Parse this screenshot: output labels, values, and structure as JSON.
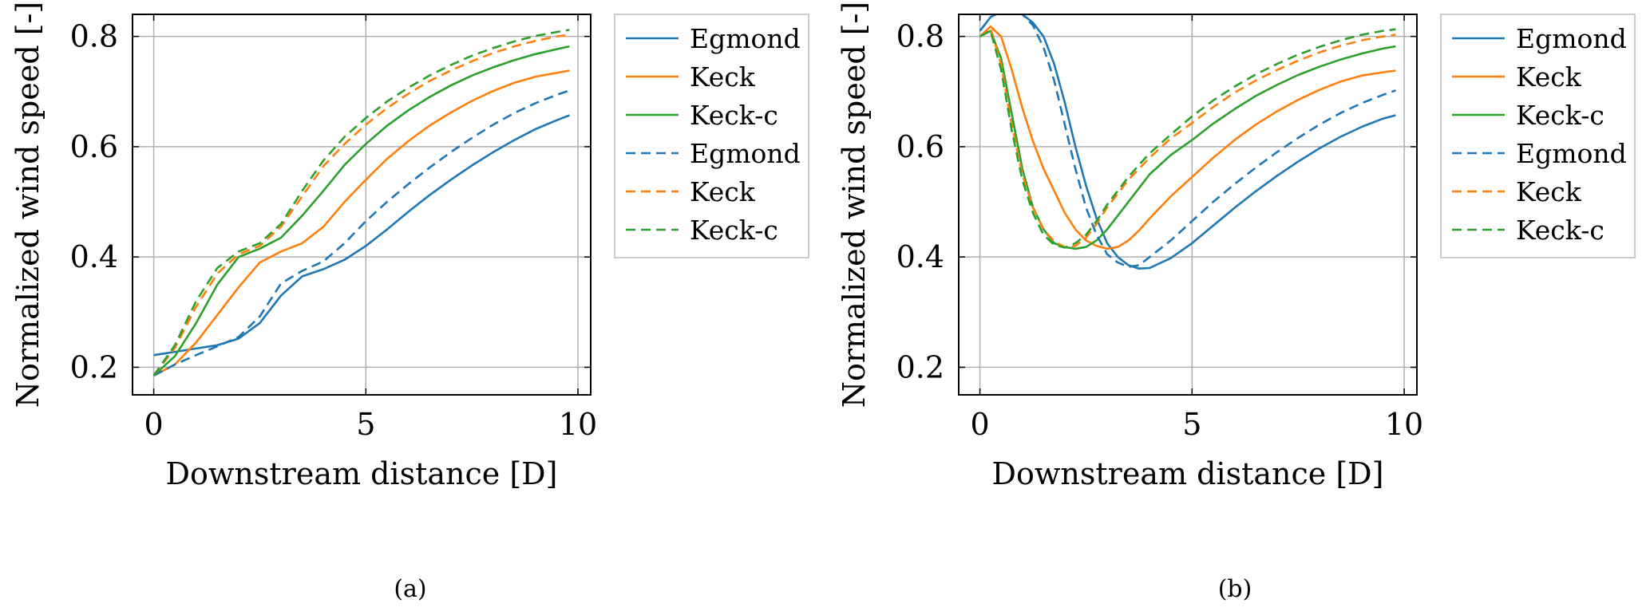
{
  "colors": {
    "blue": "#1f77b4",
    "orange": "#ff7f0e",
    "green": "#2ca02c",
    "grid": "#b0b0b0",
    "legend_border": "#cccccc"
  },
  "chart_data": [
    {
      "type": "line",
      "caption": "(a)",
      "xlabel": "Downstream distance [D]",
      "ylabel": "Normalized wind speed [-]",
      "xlim": [
        -0.5,
        10.3
      ],
      "ylim": [
        0.15,
        0.84
      ],
      "xticks": [
        0,
        5,
        10
      ],
      "xtick_labels": [
        "0",
        "5",
        "10"
      ],
      "yticks": [
        0.2,
        0.4,
        0.6,
        0.8
      ],
      "ytick_labels": [
        "0.2",
        "0.4",
        "0.6",
        "0.8"
      ],
      "grid": true,
      "legend_position": "outside-right",
      "series": [
        {
          "name": "Egmond",
          "style": "solid",
          "color": "blue",
          "x": [
            0,
            0.5,
            1,
            1.5,
            2,
            2.5,
            3,
            3.5,
            4,
            4.5,
            5,
            5.5,
            6,
            6.5,
            7,
            7.5,
            8,
            8.5,
            9,
            9.5,
            9.8
          ],
          "y": [
            0.222,
            0.228,
            0.234,
            0.24,
            0.252,
            0.28,
            0.33,
            0.365,
            0.378,
            0.395,
            0.42,
            0.45,
            0.482,
            0.512,
            0.54,
            0.566,
            0.59,
            0.612,
            0.632,
            0.648,
            0.657
          ]
        },
        {
          "name": "Keck",
          "style": "solid",
          "color": "orange",
          "x": [
            0,
            0.5,
            1,
            1.5,
            2,
            2.5,
            3,
            3.5,
            4,
            4.5,
            5,
            5.5,
            6,
            6.5,
            7,
            7.5,
            8,
            8.5,
            9,
            9.5,
            9.8
          ],
          "y": [
            0.185,
            0.205,
            0.245,
            0.295,
            0.345,
            0.39,
            0.41,
            0.425,
            0.455,
            0.5,
            0.54,
            0.578,
            0.61,
            0.638,
            0.662,
            0.683,
            0.701,
            0.716,
            0.727,
            0.734,
            0.738
          ]
        },
        {
          "name": "Keck-c",
          "style": "solid",
          "color": "green",
          "x": [
            0,
            0.5,
            1,
            1.5,
            2,
            2.5,
            3,
            3.5,
            4,
            4.5,
            5,
            5.5,
            6,
            6.5,
            7,
            7.5,
            8,
            8.5,
            9,
            9.5,
            9.8
          ],
          "y": [
            0.185,
            0.22,
            0.28,
            0.35,
            0.4,
            0.415,
            0.435,
            0.475,
            0.52,
            0.567,
            0.605,
            0.638,
            0.666,
            0.69,
            0.711,
            0.729,
            0.744,
            0.757,
            0.768,
            0.777,
            0.782
          ]
        },
        {
          "name": "Egmond",
          "style": "dashed",
          "color": "blue",
          "x": [
            0,
            0.5,
            1,
            1.5,
            2,
            2.5,
            3,
            3.5,
            4,
            4.5,
            5,
            5.5,
            6,
            6.5,
            7,
            7.5,
            8,
            8.5,
            9,
            9.5,
            9.8
          ],
          "y": [
            0.185,
            0.205,
            0.222,
            0.238,
            0.255,
            0.292,
            0.352,
            0.375,
            0.392,
            0.425,
            0.465,
            0.5,
            0.532,
            0.562,
            0.59,
            0.616,
            0.64,
            0.661,
            0.679,
            0.694,
            0.702
          ]
        },
        {
          "name": "Keck",
          "style": "dashed",
          "color": "orange",
          "x": [
            0,
            0.5,
            1,
            1.5,
            2,
            2.5,
            3,
            3.5,
            4,
            4.5,
            5,
            5.5,
            6,
            6.5,
            7,
            7.5,
            8,
            8.5,
            9,
            9.5,
            9.8
          ],
          "y": [
            0.185,
            0.235,
            0.31,
            0.37,
            0.405,
            0.42,
            0.455,
            0.51,
            0.565,
            0.605,
            0.64,
            0.67,
            0.696,
            0.719,
            0.738,
            0.755,
            0.77,
            0.782,
            0.792,
            0.8,
            0.803
          ]
        },
        {
          "name": "Keck-c",
          "style": "dashed",
          "color": "green",
          "x": [
            0,
            0.5,
            1,
            1.5,
            2,
            2.5,
            3,
            3.5,
            4,
            4.5,
            5,
            5.5,
            6,
            6.5,
            7,
            7.5,
            8,
            8.5,
            9,
            9.5,
            9.8
          ],
          "y": [
            0.185,
            0.24,
            0.32,
            0.38,
            0.41,
            0.425,
            0.46,
            0.52,
            0.575,
            0.618,
            0.652,
            0.682,
            0.707,
            0.729,
            0.748,
            0.765,
            0.779,
            0.791,
            0.801,
            0.808,
            0.812
          ]
        }
      ]
    },
    {
      "type": "line",
      "caption": "(b)",
      "xlabel": "Downstream distance [D]",
      "ylabel": "Normalized wind speed [-]",
      "xlim": [
        -0.5,
        10.3
      ],
      "ylim": [
        0.15,
        0.84
      ],
      "xticks": [
        0,
        5,
        10
      ],
      "xtick_labels": [
        "0",
        "5",
        "10"
      ],
      "yticks": [
        0.2,
        0.4,
        0.6,
        0.8
      ],
      "ytick_labels": [
        "0.2",
        "0.4",
        "0.6",
        "0.8"
      ],
      "grid": true,
      "legend_position": "outside-right",
      "series": [
        {
          "name": "Egmond",
          "style": "solid",
          "color": "blue",
          "x": [
            0,
            0.25,
            0.5,
            0.75,
            1,
            1.25,
            1.5,
            1.75,
            2,
            2.25,
            2.5,
            2.75,
            3,
            3.25,
            3.5,
            3.75,
            4,
            4.5,
            5,
            5.5,
            6,
            6.5,
            7,
            7.5,
            8,
            8.5,
            9,
            9.5,
            9.8
          ],
          "y": [
            0.81,
            0.835,
            0.845,
            0.845,
            0.84,
            0.825,
            0.8,
            0.75,
            0.68,
            0.6,
            0.53,
            0.47,
            0.425,
            0.4,
            0.385,
            0.379,
            0.38,
            0.398,
            0.425,
            0.457,
            0.489,
            0.519,
            0.547,
            0.573,
            0.597,
            0.618,
            0.636,
            0.651,
            0.657
          ]
        },
        {
          "name": "Keck",
          "style": "solid",
          "color": "orange",
          "x": [
            0,
            0.25,
            0.5,
            0.75,
            1,
            1.25,
            1.5,
            1.75,
            2,
            2.25,
            2.5,
            2.75,
            3,
            3.25,
            3.5,
            3.75,
            4,
            4.5,
            5,
            5.5,
            6,
            6.5,
            7,
            7.5,
            8,
            8.5,
            9,
            9.5,
            9.8
          ],
          "y": [
            0.8,
            0.818,
            0.8,
            0.74,
            0.67,
            0.61,
            0.56,
            0.52,
            0.48,
            0.45,
            0.43,
            0.42,
            0.415,
            0.418,
            0.43,
            0.448,
            0.47,
            0.51,
            0.545,
            0.58,
            0.612,
            0.64,
            0.664,
            0.685,
            0.703,
            0.718,
            0.729,
            0.735,
            0.738
          ]
        },
        {
          "name": "Keck-c",
          "style": "solid",
          "color": "green",
          "x": [
            0,
            0.25,
            0.5,
            0.75,
            1,
            1.25,
            1.5,
            1.75,
            2,
            2.25,
            2.5,
            2.75,
            3,
            3.25,
            3.5,
            3.75,
            4,
            4.5,
            5,
            5.5,
            6,
            6.5,
            7,
            7.5,
            8,
            8.5,
            9,
            9.5,
            9.8
          ],
          "y": [
            0.8,
            0.81,
            0.76,
            0.66,
            0.56,
            0.49,
            0.45,
            0.425,
            0.418,
            0.415,
            0.418,
            0.43,
            0.45,
            0.475,
            0.5,
            0.525,
            0.55,
            0.585,
            0.612,
            0.642,
            0.668,
            0.692,
            0.712,
            0.73,
            0.745,
            0.758,
            0.769,
            0.778,
            0.782
          ]
        },
        {
          "name": "Egmond",
          "style": "dashed",
          "color": "blue",
          "x": [
            0,
            0.25,
            0.5,
            0.75,
            1,
            1.25,
            1.5,
            1.75,
            2,
            2.25,
            2.5,
            2.75,
            3,
            3.25,
            3.5,
            3.75,
            4,
            4.5,
            5,
            5.5,
            6,
            6.5,
            7,
            7.5,
            8,
            8.5,
            9,
            9.5,
            9.8
          ],
          "y": [
            0.81,
            0.835,
            0.845,
            0.845,
            0.84,
            0.82,
            0.78,
            0.72,
            0.64,
            0.56,
            0.49,
            0.44,
            0.405,
            0.39,
            0.382,
            0.385,
            0.4,
            0.43,
            0.465,
            0.5,
            0.532,
            0.562,
            0.59,
            0.616,
            0.64,
            0.661,
            0.679,
            0.694,
            0.702
          ]
        },
        {
          "name": "Keck",
          "style": "dashed",
          "color": "orange",
          "x": [
            0,
            0.25,
            0.5,
            0.75,
            1,
            1.25,
            1.5,
            1.75,
            2,
            2.25,
            2.5,
            2.75,
            3,
            3.25,
            3.5,
            3.75,
            4,
            4.5,
            5,
            5.5,
            6,
            6.5,
            7,
            7.5,
            8,
            8.5,
            9,
            9.5,
            9.8
          ],
          "y": [
            0.8,
            0.815,
            0.75,
            0.64,
            0.55,
            0.49,
            0.45,
            0.428,
            0.418,
            0.42,
            0.435,
            0.46,
            0.49,
            0.515,
            0.54,
            0.56,
            0.58,
            0.615,
            0.643,
            0.672,
            0.698,
            0.72,
            0.739,
            0.756,
            0.771,
            0.783,
            0.793,
            0.8,
            0.803
          ]
        },
        {
          "name": "Keck-c",
          "style": "dashed",
          "color": "green",
          "x": [
            0,
            0.25,
            0.5,
            0.75,
            1,
            1.25,
            1.5,
            1.75,
            2,
            2.25,
            2.5,
            2.75,
            3,
            3.25,
            3.5,
            3.75,
            4,
            4.5,
            5,
            5.5,
            6,
            6.5,
            7,
            7.5,
            8,
            8.5,
            9,
            9.5,
            9.8
          ],
          "y": [
            0.8,
            0.81,
            0.74,
            0.63,
            0.54,
            0.48,
            0.44,
            0.422,
            0.417,
            0.425,
            0.44,
            0.465,
            0.495,
            0.52,
            0.545,
            0.567,
            0.588,
            0.622,
            0.655,
            0.684,
            0.709,
            0.731,
            0.75,
            0.767,
            0.781,
            0.793,
            0.803,
            0.81,
            0.813
          ]
        }
      ]
    }
  ]
}
